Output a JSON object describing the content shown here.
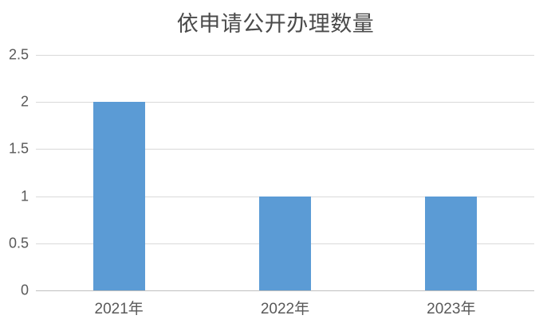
{
  "chart_data": {
    "type": "bar",
    "title": "依申请公开办理数量",
    "categories": [
      "2021年",
      "2022年",
      "2023年"
    ],
    "values": [
      2,
      1,
      1
    ],
    "xlabel": "",
    "ylabel": "",
    "ylim": [
      0,
      2.5
    ],
    "ytick_interval": 0.5,
    "ytick_labels": [
      "2.5",
      "2",
      "1.5",
      "1",
      "0.5",
      "0"
    ],
    "grid": "horizontal",
    "legend": "none",
    "bar_color": "#5B9BD5"
  },
  "colors": {
    "bar": "#5B9BD5",
    "gridline": "#D9D9D9",
    "axis_line": "#BFBFBF",
    "title_text": "#4A4A4A",
    "label_text": "#595959",
    "background": "#FFFFFF"
  }
}
